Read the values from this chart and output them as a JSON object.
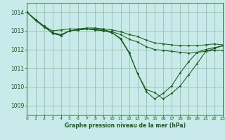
{
  "bg_color": "#c8eaea",
  "grid_color": "#8ab89a",
  "line_color": "#1a5c1a",
  "title": "Graphe pression niveau de la mer (hPa)",
  "xlim": [
    0,
    23
  ],
  "ylim": [
    1008.5,
    1014.5
  ],
  "yticks": [
    1009,
    1010,
    1011,
    1012,
    1013,
    1014
  ],
  "xticks": [
    0,
    1,
    2,
    3,
    4,
    5,
    6,
    7,
    8,
    9,
    10,
    11,
    12,
    13,
    14,
    15,
    16,
    17,
    18,
    19,
    20,
    21,
    22,
    23
  ],
  "lines": [
    {
      "x": [
        0,
        1,
        2,
        3,
        4,
        5,
        6,
        7,
        8,
        9,
        10,
        11,
        12,
        13,
        14,
        15,
        16,
        17,
        18,
        19,
        20,
        21,
        22,
        23
      ],
      "y": [
        1014.0,
        1013.6,
        1013.25,
        1013.0,
        1013.05,
        1013.1,
        1013.1,
        1013.15,
        1013.15,
        1013.1,
        1013.05,
        1012.95,
        1012.8,
        1012.7,
        1012.5,
        1012.35,
        1012.3,
        1012.25,
        1012.2,
        1012.2,
        1012.2,
        1012.25,
        1012.3,
        1012.25
      ]
    },
    {
      "x": [
        0,
        1,
        2,
        3,
        4,
        5,
        6,
        7,
        8,
        9,
        10,
        11,
        12,
        13,
        14,
        15,
        16,
        17,
        18,
        19,
        20,
        21,
        22,
        23
      ],
      "y": [
        1014.0,
        1013.55,
        1013.2,
        1012.9,
        1012.75,
        1013.0,
        1013.05,
        1013.1,
        1013.1,
        1013.05,
        1012.95,
        1012.8,
        1012.55,
        1012.4,
        1012.15,
        1012.0,
        1011.95,
        1011.9,
        1011.85,
        1011.8,
        1011.85,
        1011.9,
        1011.95,
        1011.95
      ]
    },
    {
      "x": [
        0,
        1,
        2,
        3,
        4,
        5,
        6,
        7,
        8,
        9,
        10,
        11,
        12,
        13,
        14,
        15,
        16,
        17,
        18,
        19,
        20,
        21,
        22,
        23
      ],
      "y": [
        1014.0,
        1013.6,
        1013.25,
        1012.9,
        1012.8,
        1013.0,
        1013.05,
        1013.1,
        1013.05,
        1013.0,
        1012.9,
        1012.55,
        1011.8,
        1010.7,
        1009.85,
        1009.7,
        1009.35,
        1009.65,
        1010.05,
        1010.65,
        1011.25,
        1011.9,
        1012.05,
        1012.2
      ]
    },
    {
      "x": [
        0,
        1,
        2,
        3,
        4,
        5,
        6,
        7,
        8,
        9,
        10,
        11,
        12,
        13,
        14,
        15,
        16,
        17,
        18,
        19,
        20,
        21,
        22,
        23
      ],
      "y": [
        1014.0,
        1013.6,
        1013.25,
        1012.85,
        1012.75,
        1013.0,
        1013.05,
        1013.1,
        1013.05,
        1013.0,
        1012.9,
        1012.6,
        1011.85,
        1010.7,
        1009.75,
        1009.35,
        1009.65,
        1010.05,
        1010.75,
        1011.35,
        1011.85,
        1012.0,
        1012.1,
        1012.2
      ]
    }
  ]
}
